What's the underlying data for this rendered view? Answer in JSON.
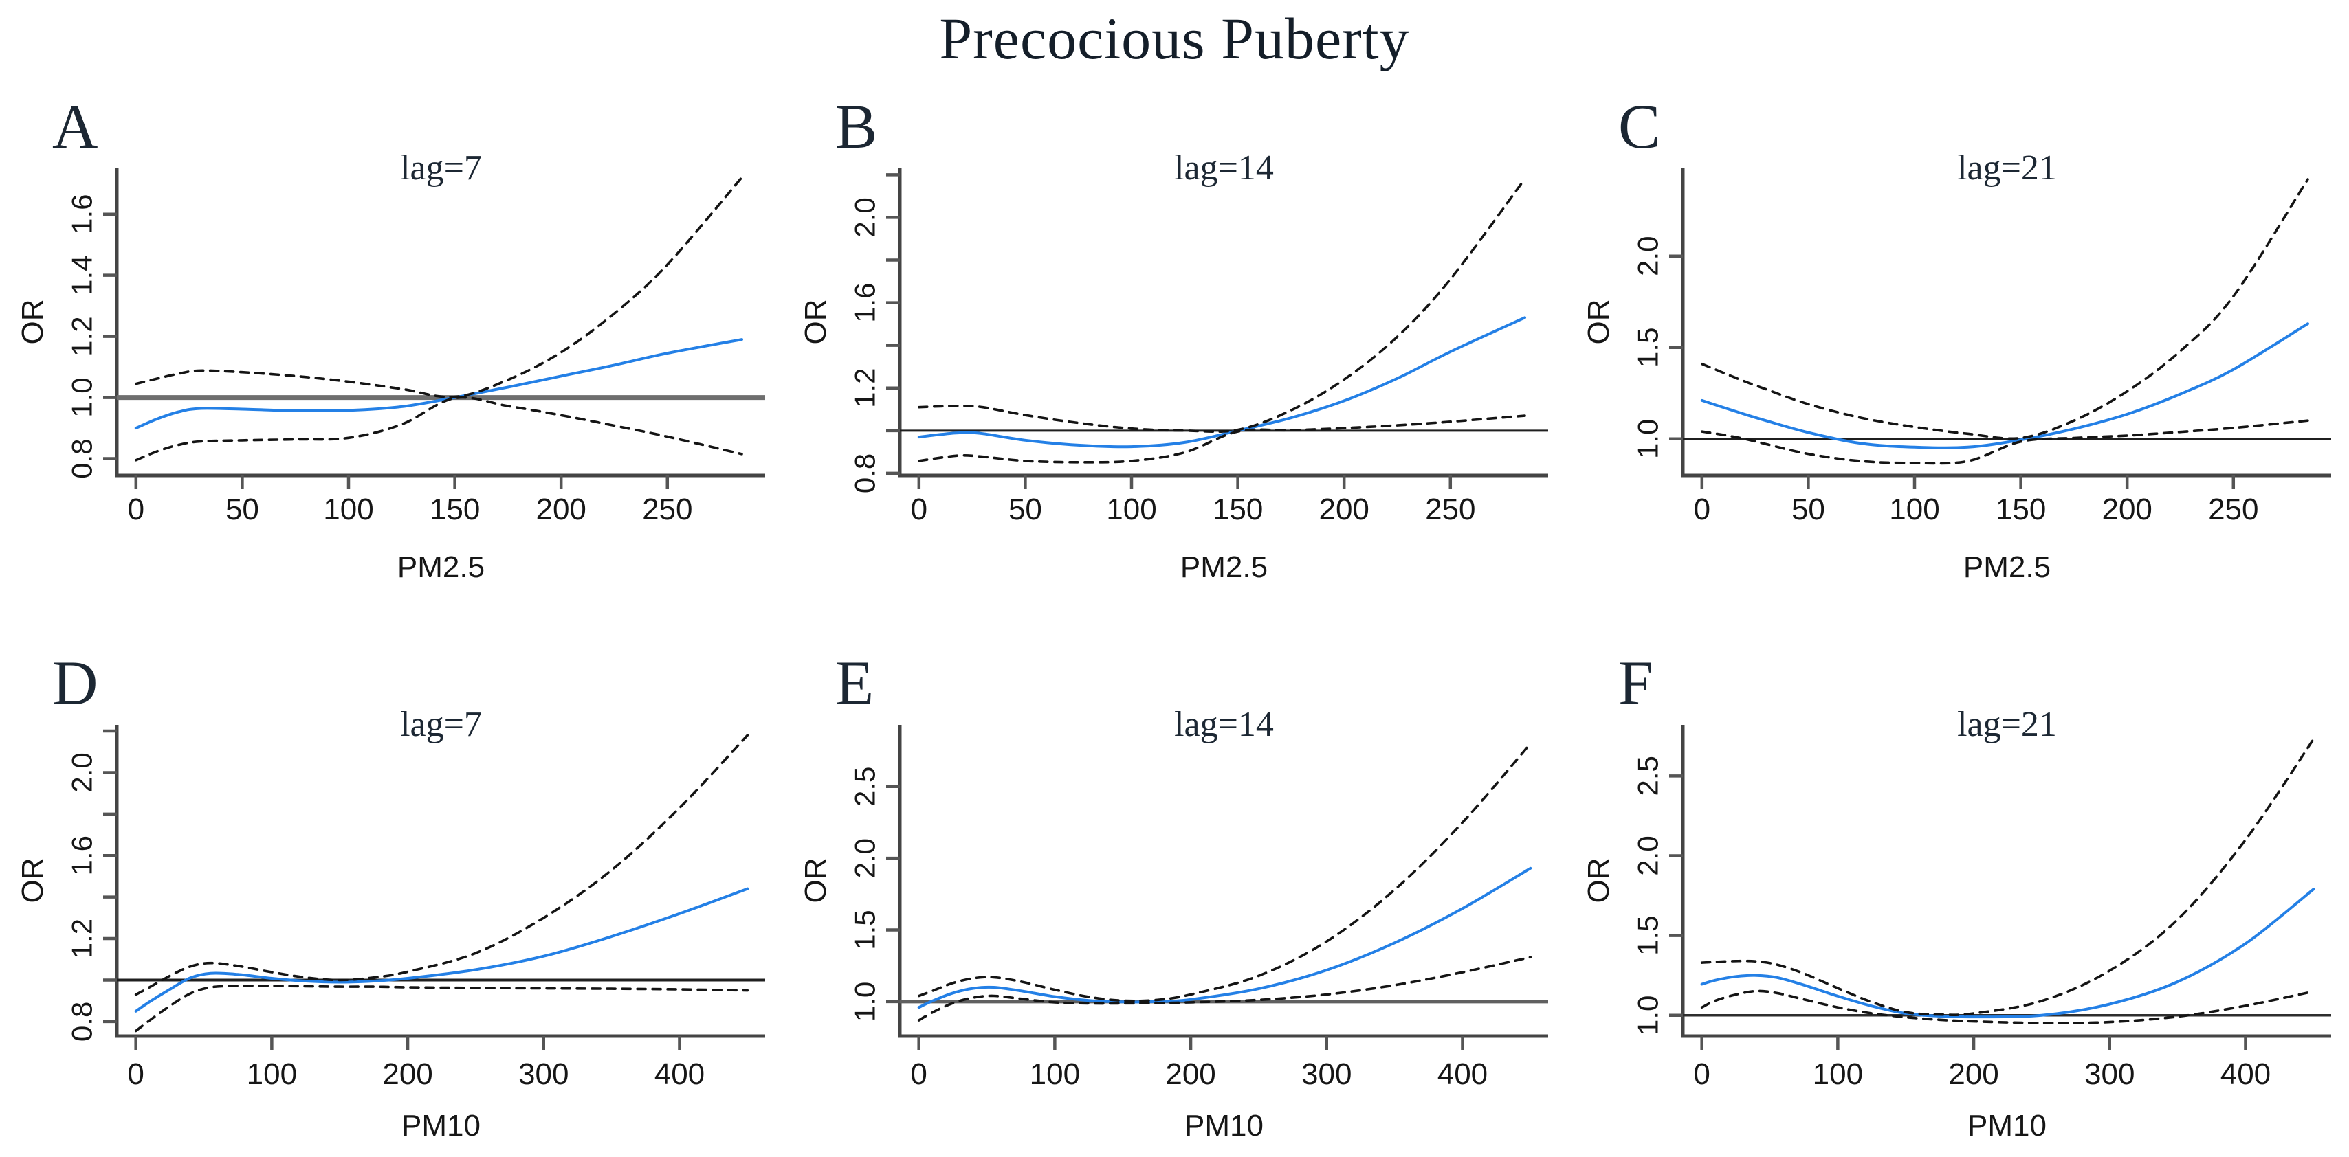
{
  "figure": {
    "title": "Precocious Puberty",
    "ylabel": "OR",
    "reference_or": 1.0
  },
  "colors": {
    "fit_line": "#2480E6",
    "ci_line": "#141414",
    "axis_line": "#444444",
    "tick_mark": "#555555",
    "tick_text": "#161616",
    "serif_text": "#1c2733",
    "background": "#ffffff"
  },
  "chart_data": [
    {
      "id": "A",
      "type": "line",
      "panel_label": "A",
      "title": "lag=7",
      "xlabel": "PM2.5",
      "ylabel": "OR",
      "xlim": [
        -9,
        296
      ],
      "ylim": [
        0.745,
        1.75
      ],
      "xticks": [
        [
          0,
          "0"
        ],
        [
          50,
          "50"
        ],
        [
          100,
          "100"
        ],
        [
          150,
          "150"
        ],
        [
          200,
          "200"
        ],
        [
          250,
          "250"
        ]
      ],
      "yticks": [
        [
          0.8,
          "0.8"
        ],
        [
          1.0,
          "1.0"
        ],
        [
          1.2,
          "1.2"
        ],
        [
          1.4,
          "1.4"
        ],
        [
          1.6,
          "1.6"
        ]
      ],
      "ref_line": {
        "y": 1.0,
        "width": 7,
        "color": "#6e6e6e"
      },
      "x": [
        0,
        10,
        20,
        30,
        50,
        75,
        100,
        125,
        150,
        175,
        200,
        225,
        250,
        285
      ],
      "series": [
        {
          "name": "OR fit",
          "role": "fit",
          "y": [
            0.9,
            0.93,
            0.953,
            0.964,
            0.962,
            0.957,
            0.958,
            0.97,
            1.0,
            1.034,
            1.07,
            1.106,
            1.145,
            1.19
          ]
        },
        {
          "name": "upper 95% CI",
          "role": "ci",
          "y": [
            1.045,
            1.062,
            1.078,
            1.088,
            1.083,
            1.07,
            1.052,
            1.028,
            1.002,
            1.058,
            1.148,
            1.275,
            1.435,
            1.72
          ]
        },
        {
          "name": "lower 95% CI",
          "role": "ci",
          "y": [
            0.795,
            0.824,
            0.845,
            0.856,
            0.86,
            0.863,
            0.868,
            0.912,
            0.998,
            0.972,
            0.942,
            0.908,
            0.872,
            0.815
          ]
        }
      ]
    },
    {
      "id": "B",
      "type": "line",
      "panel_label": "B",
      "title": "lag=14",
      "xlabel": "PM2.5",
      "ylabel": "OR",
      "xlim": [
        -9,
        296
      ],
      "ylim": [
        0.79,
        2.23
      ],
      "xticks": [
        [
          0,
          "0"
        ],
        [
          50,
          "50"
        ],
        [
          100,
          "100"
        ],
        [
          150,
          "150"
        ],
        [
          200,
          "200"
        ],
        [
          250,
          "250"
        ]
      ],
      "yticks": [
        [
          0.8,
          "0.8"
        ],
        [
          1.0,
          ""
        ],
        [
          1.2,
          "1.2"
        ],
        [
          1.4,
          ""
        ],
        [
          1.6,
          "1.6"
        ],
        [
          1.8,
          ""
        ],
        [
          2.0,
          "2.0"
        ],
        [
          2.2,
          ""
        ]
      ],
      "ref_line": {
        "y": 1.0,
        "width": 3,
        "color": "#1f1f1f"
      },
      "x": [
        0,
        10,
        20,
        30,
        50,
        75,
        100,
        125,
        150,
        175,
        200,
        225,
        250,
        285
      ],
      "series": [
        {
          "name": "OR fit",
          "role": "fit",
          "y": [
            0.97,
            0.982,
            0.99,
            0.986,
            0.955,
            0.932,
            0.925,
            0.945,
            1.0,
            1.06,
            1.14,
            1.245,
            1.37,
            1.53
          ]
        },
        {
          "name": "upper 95% CI",
          "role": "ci",
          "y": [
            1.11,
            1.114,
            1.116,
            1.11,
            1.073,
            1.036,
            1.01,
            1.0,
            1.004,
            1.095,
            1.24,
            1.44,
            1.71,
            2.18
          ]
        },
        {
          "name": "lower 95% CI",
          "role": "ci",
          "y": [
            0.858,
            0.873,
            0.884,
            0.878,
            0.858,
            0.852,
            0.858,
            0.898,
            0.996,
            1.002,
            1.012,
            1.025,
            1.042,
            1.07
          ]
        }
      ]
    },
    {
      "id": "C",
      "type": "line",
      "panel_label": "C",
      "title": "lag=21",
      "xlabel": "PM2.5",
      "ylabel": "OR",
      "xlim": [
        -9,
        296
      ],
      "ylim": [
        0.8,
        2.48
      ],
      "xticks": [
        [
          0,
          "0"
        ],
        [
          50,
          "50"
        ],
        [
          100,
          "100"
        ],
        [
          150,
          "150"
        ],
        [
          200,
          "200"
        ],
        [
          250,
          "250"
        ]
      ],
      "yticks": [
        [
          1.0,
          "1.0"
        ],
        [
          1.5,
          "1.5"
        ],
        [
          2.0,
          "2.0"
        ]
      ],
      "ref_line": {
        "y": 1.0,
        "width": 3,
        "color": "#1f1f1f"
      },
      "x": [
        0,
        10,
        20,
        30,
        50,
        75,
        100,
        125,
        150,
        175,
        200,
        225,
        250,
        285
      ],
      "series": [
        {
          "name": "OR fit",
          "role": "fit",
          "y": [
            1.21,
            1.172,
            1.135,
            1.1,
            1.035,
            0.975,
            0.955,
            0.955,
            0.995,
            1.055,
            1.135,
            1.245,
            1.38,
            1.63
          ]
        },
        {
          "name": "upper 95% CI",
          "role": "ci",
          "y": [
            1.41,
            1.362,
            1.315,
            1.272,
            1.19,
            1.115,
            1.065,
            1.028,
            1.005,
            1.1,
            1.26,
            1.48,
            1.78,
            2.42
          ]
        },
        {
          "name": "lower 95% CI",
          "role": "ci",
          "y": [
            1.04,
            1.022,
            1.0,
            0.972,
            0.918,
            0.878,
            0.868,
            0.878,
            0.985,
            1.005,
            1.018,
            1.038,
            1.06,
            1.1
          ]
        }
      ]
    },
    {
      "id": "D",
      "type": "line",
      "panel_label": "D",
      "title": "lag=7",
      "xlabel": "PM10",
      "ylabel": "OR",
      "xlim": [
        -14,
        463
      ],
      "ylim": [
        0.73,
        2.23
      ],
      "xticks": [
        [
          0,
          "0"
        ],
        [
          100,
          "100"
        ],
        [
          200,
          "200"
        ],
        [
          300,
          "300"
        ],
        [
          400,
          "400"
        ]
      ],
      "yticks": [
        [
          0.8,
          "0.8"
        ],
        [
          1.0,
          ""
        ],
        [
          1.2,
          "1.2"
        ],
        [
          1.4,
          ""
        ],
        [
          1.6,
          "1.6"
        ],
        [
          1.8,
          ""
        ],
        [
          2.0,
          "2.0"
        ],
        [
          2.2,
          ""
        ]
      ],
      "ref_line": {
        "y": 1.0,
        "width": 4,
        "color": "#1f1f1f"
      },
      "x": [
        0,
        10,
        25,
        40,
        55,
        75,
        100,
        125,
        150,
        175,
        200,
        250,
        300,
        350,
        400,
        450
      ],
      "series": [
        {
          "name": "OR fit",
          "role": "fit",
          "y": [
            0.85,
            0.895,
            0.955,
            1.01,
            1.032,
            1.027,
            1.008,
            0.995,
            0.99,
            0.995,
            1.008,
            1.05,
            1.115,
            1.21,
            1.32,
            1.44
          ]
        },
        {
          "name": "upper 95% CI",
          "role": "ci",
          "y": [
            0.93,
            0.965,
            1.02,
            1.065,
            1.082,
            1.068,
            1.038,
            1.012,
            1.0,
            1.012,
            1.04,
            1.13,
            1.3,
            1.53,
            1.83,
            2.18
          ]
        },
        {
          "name": "lower 95% CI",
          "role": "ci",
          "y": [
            0.755,
            0.805,
            0.875,
            0.935,
            0.965,
            0.972,
            0.972,
            0.97,
            0.968,
            0.968,
            0.965,
            0.962,
            0.96,
            0.958,
            0.955,
            0.95
          ]
        }
      ]
    },
    {
      "id": "E",
      "type": "line",
      "panel_label": "E",
      "title": "lag=14",
      "xlabel": "PM10",
      "ylabel": "OR",
      "xlim": [
        -14,
        463
      ],
      "ylim": [
        0.76,
        2.93
      ],
      "xticks": [
        [
          0,
          "0"
        ],
        [
          100,
          "100"
        ],
        [
          200,
          "200"
        ],
        [
          300,
          "300"
        ],
        [
          400,
          "400"
        ]
      ],
      "yticks": [
        [
          1.0,
          "1.0"
        ],
        [
          1.5,
          "1.5"
        ],
        [
          2.0,
          "2.0"
        ],
        [
          2.5,
          "2.5"
        ]
      ],
      "ref_line": {
        "y": 1.0,
        "width": 5,
        "color": "#606060"
      },
      "x": [
        0,
        10,
        25,
        40,
        55,
        75,
        100,
        125,
        150,
        175,
        200,
        250,
        300,
        350,
        400,
        450
      ],
      "series": [
        {
          "name": "OR fit",
          "role": "fit",
          "y": [
            0.96,
            1.005,
            1.06,
            1.093,
            1.1,
            1.075,
            1.035,
            1.008,
            0.998,
            1.0,
            1.015,
            1.09,
            1.22,
            1.41,
            1.65,
            1.93
          ]
        },
        {
          "name": "upper 95% CI",
          "role": "ci",
          "y": [
            1.04,
            1.075,
            1.13,
            1.163,
            1.17,
            1.14,
            1.083,
            1.033,
            1.007,
            1.012,
            1.05,
            1.18,
            1.42,
            1.78,
            2.25,
            2.8
          ]
        },
        {
          "name": "lower 95% CI",
          "role": "ci",
          "y": [
            0.87,
            0.925,
            0.99,
            1.028,
            1.04,
            1.02,
            0.995,
            0.988,
            0.988,
            0.99,
            0.995,
            1.012,
            1.05,
            1.115,
            1.205,
            1.31
          ]
        }
      ]
    },
    {
      "id": "F",
      "type": "line",
      "panel_label": "F",
      "title": "lag=21",
      "xlabel": "PM10",
      "ylabel": "OR",
      "xlim": [
        -14,
        463
      ],
      "ylim": [
        0.87,
        2.82
      ],
      "xticks": [
        [
          0,
          "0"
        ],
        [
          100,
          "100"
        ],
        [
          200,
          "200"
        ],
        [
          300,
          "300"
        ],
        [
          400,
          "400"
        ]
      ],
      "yticks": [
        [
          1.0,
          "1.0"
        ],
        [
          1.5,
          "1.5"
        ],
        [
          2.0,
          "2.0"
        ],
        [
          2.5,
          "2.5"
        ]
      ],
      "ref_line": {
        "y": 1.0,
        "width": 3.5,
        "color": "#2e2e2e"
      },
      "x": [
        0,
        10,
        25,
        40,
        55,
        75,
        100,
        125,
        150,
        175,
        200,
        250,
        300,
        350,
        400,
        450
      ],
      "series": [
        {
          "name": "OR fit",
          "role": "fit",
          "y": [
            1.195,
            1.22,
            1.243,
            1.25,
            1.237,
            1.19,
            1.12,
            1.058,
            1.012,
            0.995,
            0.99,
            1.0,
            1.07,
            1.21,
            1.45,
            1.79
          ]
        },
        {
          "name": "upper 95% CI",
          "role": "ci",
          "y": [
            1.33,
            1.335,
            1.34,
            1.338,
            1.318,
            1.262,
            1.17,
            1.083,
            1.02,
            1.005,
            1.012,
            1.09,
            1.28,
            1.6,
            2.1,
            2.73
          ]
        },
        {
          "name": "lower 95% CI",
          "role": "ci",
          "y": [
            1.05,
            1.092,
            1.13,
            1.152,
            1.14,
            1.1,
            1.05,
            1.012,
            0.988,
            0.972,
            0.962,
            0.952,
            0.958,
            0.992,
            1.06,
            1.15
          ]
        }
      ]
    }
  ]
}
